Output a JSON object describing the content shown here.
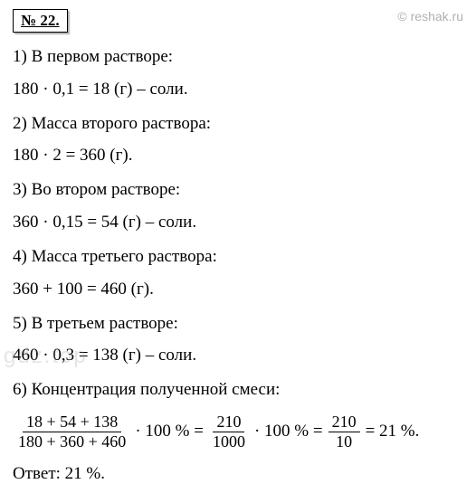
{
  "watermark": {
    "top_right": "© reshak.ru",
    "left": "gdz.top"
  },
  "problem_number": "№ 22.",
  "lines": {
    "l1": "1) В первом растворе:",
    "l2": "180 · 0,1 = 18 (г) – соли.",
    "l3": "2) Масса второго раствора:",
    "l4": "180 · 2 = 360 (г).",
    "l5": "3) Во втором растворе:",
    "l6": "360 · 0,15 = 54 (г) – соли.",
    "l7": "4) Масса третьего раствора:",
    "l8": "360 + 100 = 460 (г).",
    "l9": "5) В третьем растворе:",
    "l10": "460 · 0,3 = 138 (г) – соли.",
    "l11": "6) Концентрация полученной смеси:"
  },
  "fraction_calc": {
    "f1_num": "18 + 54 + 138",
    "f1_den": "180 + 360 + 460",
    "op1": " · 100 % = ",
    "f2_num": "210",
    "f2_den": "1000",
    "op2": " · 100 % = ",
    "f3_num": "210",
    "f3_den": "10",
    "result": " = 21 %."
  },
  "answer": "Ответ: 21 %.",
  "styling": {
    "background_color": "#ffffff",
    "text_color": "#000000",
    "watermark_color_top": "#b0b0b0",
    "watermark_color_left": "rgba(150,150,150,0.25)",
    "body_fontsize": 19,
    "fraction_fontsize": 18,
    "font_family": "Times New Roman"
  }
}
